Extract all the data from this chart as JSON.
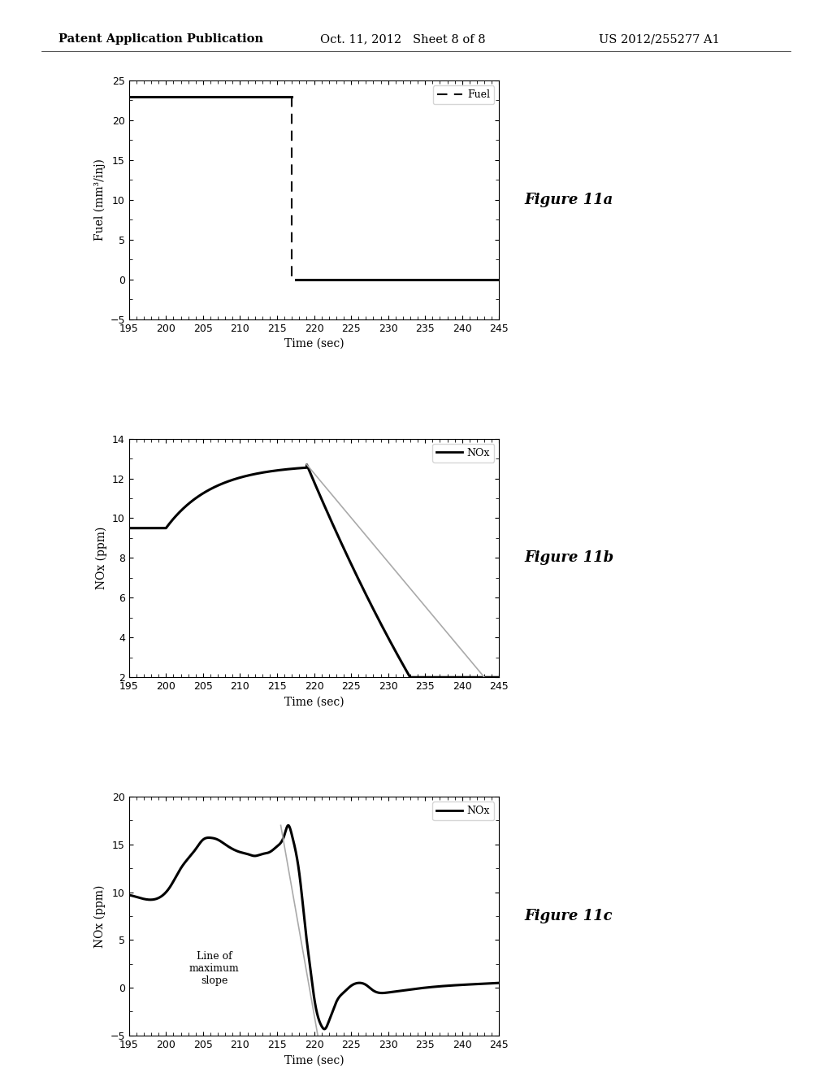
{
  "header_left": "Patent Application Publication",
  "header_mid": "Oct. 11, 2012   Sheet 8 of 8",
  "header_right": "US 2012/255277 A1",
  "fig_labels": [
    "Figure 11a",
    "Figure 11b",
    "Figure 11c"
  ],
  "xlim": [
    195,
    245
  ],
  "xticks": [
    195,
    200,
    205,
    210,
    215,
    220,
    225,
    230,
    235,
    240,
    245
  ],
  "xlabel": "Time (sec)",
  "plot1": {
    "ylabel": "Fuel (mm³/inj)",
    "ylim": [
      -5,
      25
    ],
    "yticks": [
      -5,
      0,
      5,
      10,
      15,
      20,
      25
    ],
    "legend": "Fuel"
  },
  "plot2": {
    "ylabel": "NOx (ppm)",
    "ylim": [
      2,
      14
    ],
    "yticks": [
      2,
      4,
      6,
      8,
      10,
      12,
      14
    ],
    "legend": "NOx"
  },
  "plot3": {
    "ylabel": "NOx (ppm)",
    "ylim": [
      -5,
      20
    ],
    "yticks": [
      -5,
      0,
      5,
      10,
      15,
      20
    ],
    "legend": "NOx",
    "annotation": "Line of\nmaximum\nslope"
  },
  "line_color": "#000000",
  "thin_line_color": "#aaaaaa",
  "bg_color": "#ffffff"
}
